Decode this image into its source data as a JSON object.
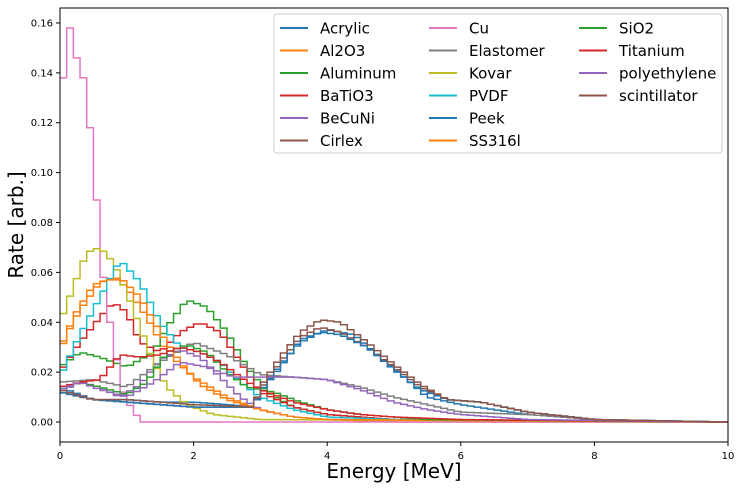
{
  "chart_data": {
    "type": "line",
    "title": "",
    "xlabel": "Energy [MeV]",
    "ylabel": "Rate [arb.]",
    "xlim": [
      0,
      10
    ],
    "ylim": [
      -0.008,
      0.166
    ],
    "xticks": [
      0,
      2,
      4,
      6,
      8,
      10
    ],
    "xtick_labels": [
      "0",
      "2",
      "4",
      "6",
      "8",
      "10"
    ],
    "yticks": [
      0.0,
      0.02,
      0.04,
      0.06,
      0.08,
      0.1,
      0.12,
      0.14,
      0.16
    ],
    "ytick_labels": [
      "0.00",
      "0.02",
      "0.04",
      "0.06",
      "0.08",
      "0.10",
      "0.12",
      "0.14",
      "0.16"
    ],
    "grid": false,
    "legend_position": "top-right",
    "legend_columns": 3,
    "bin_width": 0.1,
    "series": [
      {
        "name": "Acrylic",
        "color": "#1f77b4",
        "points": [
          [
            0,
            0.014
          ],
          [
            0.5,
            0.009
          ],
          [
            1,
            0.009
          ],
          [
            1.5,
            0.008
          ],
          [
            2,
            0.008
          ],
          [
            2.5,
            0.007
          ],
          [
            2.9,
            0.006
          ],
          [
            3,
            0.012
          ],
          [
            3.3,
            0.022
          ],
          [
            3.6,
            0.033
          ],
          [
            4,
            0.037
          ],
          [
            4.4,
            0.035
          ],
          [
            4.8,
            0.026
          ],
          [
            5.2,
            0.017
          ],
          [
            5.5,
            0.01
          ],
          [
            6,
            0.007
          ],
          [
            6.5,
            0.005
          ],
          [
            7,
            0.003
          ],
          [
            8,
            0.001
          ],
          [
            10,
            0
          ]
        ]
      },
      {
        "name": "Al2O3",
        "color": "#ff7f0e",
        "points": [
          [
            0,
            0.028
          ],
          [
            0.2,
            0.042
          ],
          [
            0.5,
            0.055
          ],
          [
            0.8,
            0.058
          ],
          [
            1,
            0.054
          ],
          [
            1.3,
            0.042
          ],
          [
            1.6,
            0.028
          ],
          [
            2,
            0.018
          ],
          [
            2.5,
            0.01
          ],
          [
            3,
            0.005
          ],
          [
            3.5,
            0.002
          ],
          [
            4,
            0.001
          ],
          [
            5,
            0
          ],
          [
            10,
            0
          ]
        ]
      },
      {
        "name": "Aluminum",
        "color": "#2ca02c",
        "points": [
          [
            0,
            0.022
          ],
          [
            0.3,
            0.028
          ],
          [
            0.6,
            0.026
          ],
          [
            1,
            0.022
          ],
          [
            1.4,
            0.028
          ],
          [
            1.6,
            0.038
          ],
          [
            1.9,
            0.049
          ],
          [
            2.2,
            0.046
          ],
          [
            2.5,
            0.036
          ],
          [
            2.8,
            0.022
          ],
          [
            3.1,
            0.012
          ],
          [
            3.5,
            0.006
          ],
          [
            4,
            0.003
          ],
          [
            5,
            0.001
          ],
          [
            10,
            0
          ]
        ]
      },
      {
        "name": "BaTiO3",
        "color": "#d62728",
        "points": [
          [
            0,
            0.02
          ],
          [
            0.3,
            0.032
          ],
          [
            0.6,
            0.042
          ],
          [
            0.8,
            0.048
          ],
          [
            1,
            0.044
          ],
          [
            1.2,
            0.032
          ],
          [
            1.5,
            0.028
          ],
          [
            1.8,
            0.036
          ],
          [
            2.1,
            0.04
          ],
          [
            2.4,
            0.036
          ],
          [
            2.7,
            0.024
          ],
          [
            3,
            0.012
          ],
          [
            3.5,
            0.006
          ],
          [
            4,
            0.003
          ],
          [
            5,
            0.001
          ],
          [
            10,
            0
          ]
        ]
      },
      {
        "name": "BeCuNi",
        "color": "#9467bd",
        "points": [
          [
            0,
            0.012
          ],
          [
            0.3,
            0.016
          ],
          [
            0.6,
            0.014
          ],
          [
            0.9,
            0.01
          ],
          [
            1.2,
            0.015
          ],
          [
            1.5,
            0.025
          ],
          [
            1.8,
            0.029
          ],
          [
            2.1,
            0.026
          ],
          [
            2.4,
            0.018
          ],
          [
            2.7,
            0.01
          ],
          [
            3,
            0.005
          ],
          [
            3.5,
            0.002
          ],
          [
            4,
            0.001
          ],
          [
            10,
            0
          ]
        ]
      },
      {
        "name": "Cirlex",
        "color": "#8c564b",
        "points": [
          [
            0,
            0.012
          ],
          [
            0.5,
            0.009
          ],
          [
            1,
            0.008
          ],
          [
            2,
            0.006
          ],
          [
            2.9,
            0.006
          ],
          [
            3,
            0.013
          ],
          [
            3.3,
            0.024
          ],
          [
            3.6,
            0.034
          ],
          [
            3.9,
            0.038
          ],
          [
            4.2,
            0.036
          ],
          [
            4.6,
            0.03
          ],
          [
            5,
            0.022
          ],
          [
            5.4,
            0.014
          ],
          [
            5.8,
            0.009
          ],
          [
            6.3,
            0.008
          ],
          [
            7,
            0.004
          ],
          [
            8,
            0.001
          ],
          [
            10,
            0
          ]
        ]
      },
      {
        "name": "Cu",
        "color": "#e377c2",
        "points": [
          [
            0,
            0.068
          ],
          [
            0.05,
            0.138
          ],
          [
            0.15,
            0.158
          ],
          [
            0.25,
            0.146
          ],
          [
            0.35,
            0.138
          ],
          [
            0.45,
            0.118
          ],
          [
            0.55,
            0.089
          ],
          [
            0.65,
            0.058
          ],
          [
            0.75,
            0.04
          ],
          [
            0.85,
            0.025
          ],
          [
            0.95,
            0.012
          ],
          [
            1.1,
            0.004
          ],
          [
            1.25,
            0
          ],
          [
            10,
            0
          ]
        ]
      },
      {
        "name": "Elastomer",
        "color": "#7f7f7f",
        "points": [
          [
            0,
            0.016
          ],
          [
            0.5,
            0.017
          ],
          [
            1,
            0.014
          ],
          [
            1.5,
            0.024
          ],
          [
            2,
            0.032
          ],
          [
            2.5,
            0.027
          ],
          [
            3,
            0.019
          ],
          [
            3.5,
            0.018
          ],
          [
            4,
            0.017
          ],
          [
            4.5,
            0.014
          ],
          [
            5,
            0.01
          ],
          [
            5.5,
            0.007
          ],
          [
            6,
            0.004
          ],
          [
            7,
            0.003
          ],
          [
            8,
            0.001
          ],
          [
            10,
            0
          ]
        ]
      },
      {
        "name": "Kovar",
        "color": "#bcbd22",
        "points": [
          [
            0,
            0.04
          ],
          [
            0.2,
            0.054
          ],
          [
            0.4,
            0.068
          ],
          [
            0.6,
            0.07
          ],
          [
            0.8,
            0.064
          ],
          [
            1,
            0.052
          ],
          [
            1.2,
            0.038
          ],
          [
            1.4,
            0.024
          ],
          [
            1.6,
            0.014
          ],
          [
            1.9,
            0.007
          ],
          [
            2.3,
            0.003
          ],
          [
            3,
            0.001
          ],
          [
            10,
            0
          ]
        ]
      },
      {
        "name": "PVDF",
        "color": "#17becf",
        "points": [
          [
            0,
            0.018
          ],
          [
            0.3,
            0.035
          ],
          [
            0.6,
            0.05
          ],
          [
            0.9,
            0.065
          ],
          [
            1.2,
            0.056
          ],
          [
            1.5,
            0.04
          ],
          [
            1.8,
            0.03
          ],
          [
            2.1,
            0.028
          ],
          [
            2.4,
            0.024
          ],
          [
            2.7,
            0.016
          ],
          [
            3,
            0.01
          ],
          [
            3.5,
            0.005
          ],
          [
            4,
            0.002
          ],
          [
            5,
            0.001
          ],
          [
            10,
            0
          ]
        ]
      },
      {
        "name": "Peek",
        "color": "#1f77b4",
        "points": [
          [
            0,
            0.012
          ],
          [
            0.5,
            0.009
          ],
          [
            1,
            0.008
          ],
          [
            2,
            0.006
          ],
          [
            2.9,
            0.006
          ],
          [
            3,
            0.012
          ],
          [
            3.3,
            0.023
          ],
          [
            3.6,
            0.032
          ],
          [
            3.9,
            0.036
          ],
          [
            4.2,
            0.035
          ],
          [
            4.6,
            0.03
          ],
          [
            5,
            0.021
          ],
          [
            5.4,
            0.013
          ],
          [
            5.8,
            0.009
          ],
          [
            6.3,
            0.008
          ],
          [
            7,
            0.004
          ],
          [
            8,
            0.001
          ],
          [
            10,
            0
          ]
        ]
      },
      {
        "name": "SS316l",
        "color": "#ff7f0e",
        "points": [
          [
            0,
            0.03
          ],
          [
            0.3,
            0.045
          ],
          [
            0.6,
            0.056
          ],
          [
            0.9,
            0.058
          ],
          [
            1.2,
            0.05
          ],
          [
            1.5,
            0.036
          ],
          [
            1.8,
            0.024
          ],
          [
            2.1,
            0.015
          ],
          [
            2.5,
            0.009
          ],
          [
            3,
            0.005
          ],
          [
            3.5,
            0.002
          ],
          [
            4,
            0.001
          ],
          [
            10,
            0
          ]
        ]
      },
      {
        "name": "SiO2",
        "color": "#2ca02c",
        "points": [
          [
            0,
            0.013
          ],
          [
            0.3,
            0.016
          ],
          [
            0.6,
            0.014
          ],
          [
            1,
            0.011
          ],
          [
            1.3,
            0.016
          ],
          [
            1.6,
            0.028
          ],
          [
            1.9,
            0.031
          ],
          [
            2.2,
            0.028
          ],
          [
            2.5,
            0.02
          ],
          [
            2.8,
            0.014
          ],
          [
            3.2,
            0.012
          ],
          [
            3.6,
            0.008
          ],
          [
            4,
            0.005
          ],
          [
            4.5,
            0.003
          ],
          [
            5.5,
            0.001
          ],
          [
            10,
            0
          ]
        ]
      },
      {
        "name": "Titanium",
        "color": "#d62728",
        "points": [
          [
            0,
            0.014
          ],
          [
            0.3,
            0.016
          ],
          [
            0.6,
            0.017
          ],
          [
            0.9,
            0.027
          ],
          [
            1.2,
            0.026
          ],
          [
            1.5,
            0.027
          ],
          [
            1.8,
            0.03
          ],
          [
            2.1,
            0.028
          ],
          [
            2.4,
            0.024
          ],
          [
            2.7,
            0.018
          ],
          [
            3,
            0.013
          ],
          [
            3.5,
            0.008
          ],
          [
            4,
            0.005
          ],
          [
            4.5,
            0.003
          ],
          [
            5,
            0.002
          ],
          [
            6,
            0.001
          ],
          [
            10,
            0
          ]
        ]
      },
      {
        "name": "polyethylene",
        "color": "#9467bd",
        "points": [
          [
            0,
            0.013
          ],
          [
            0.3,
            0.016
          ],
          [
            0.6,
            0.013
          ],
          [
            1,
            0.01
          ],
          [
            1.4,
            0.016
          ],
          [
            1.8,
            0.024
          ],
          [
            2.2,
            0.022
          ],
          [
            2.6,
            0.018
          ],
          [
            3,
            0.018
          ],
          [
            3.5,
            0.018
          ],
          [
            4,
            0.017
          ],
          [
            4.5,
            0.013
          ],
          [
            5,
            0.008
          ],
          [
            5.5,
            0.005
          ],
          [
            6,
            0.003
          ],
          [
            7,
            0.001
          ],
          [
            10,
            0
          ]
        ]
      },
      {
        "name": "scintillator",
        "color": "#8c564b",
        "points": [
          [
            0,
            0.013
          ],
          [
            0.5,
            0.009
          ],
          [
            1,
            0.009
          ],
          [
            2,
            0.007
          ],
          [
            2.9,
            0.006
          ],
          [
            3,
            0.014
          ],
          [
            3.3,
            0.026
          ],
          [
            3.6,
            0.036
          ],
          [
            3.9,
            0.041
          ],
          [
            4.2,
            0.04
          ],
          [
            4.6,
            0.032
          ],
          [
            5,
            0.023
          ],
          [
            5.4,
            0.015
          ],
          [
            5.8,
            0.009
          ],
          [
            6.3,
            0.008
          ],
          [
            7,
            0.004
          ],
          [
            8,
            0.001
          ],
          [
            10,
            0
          ]
        ]
      }
    ]
  }
}
